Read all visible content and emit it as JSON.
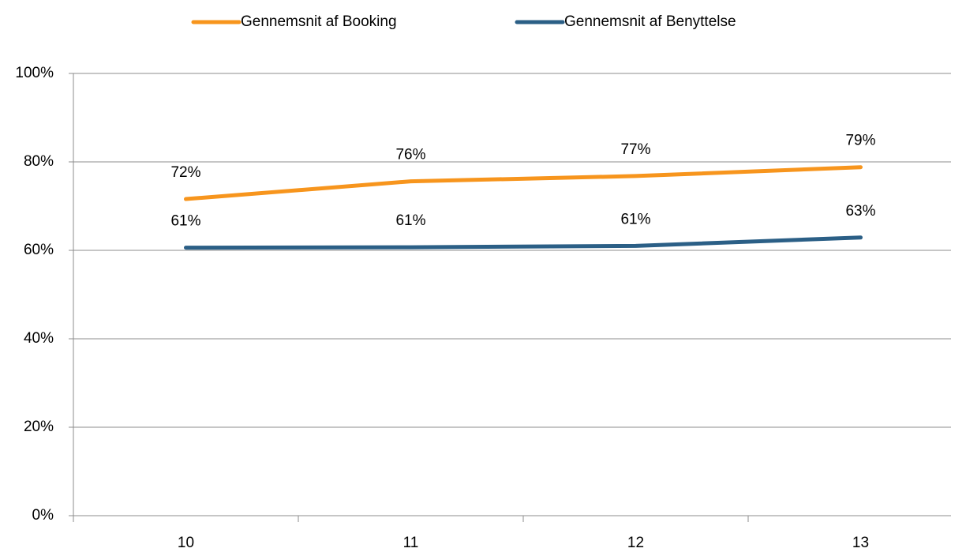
{
  "chart_data": {
    "type": "line",
    "categories": [
      "10",
      "11",
      "12",
      "13"
    ],
    "series": [
      {
        "name": "Gennemsnit af Booking",
        "color": "#f7951d",
        "values": [
          71.6,
          75.6,
          76.8,
          78.8
        ],
        "value_labels": [
          "72%",
          "76%",
          "77%",
          "79%"
        ]
      },
      {
        "name": "Gennemsnit af Benyttelse",
        "color": "#2b5f86",
        "values": [
          60.6,
          60.7,
          61.0,
          62.9
        ],
        "value_labels": [
          "61%",
          "61%",
          "61%",
          "63%"
        ]
      }
    ],
    "ylim": [
      0,
      100
    ],
    "yticks": [
      {
        "value": 0,
        "label": "0%"
      },
      {
        "value": 20,
        "label": "20%"
      },
      {
        "value": 40,
        "label": "40%"
      },
      {
        "value": 60,
        "label": "60%"
      },
      {
        "value": 80,
        "label": "80%"
      },
      {
        "value": 100,
        "label": "100%"
      }
    ],
    "grid": true
  }
}
